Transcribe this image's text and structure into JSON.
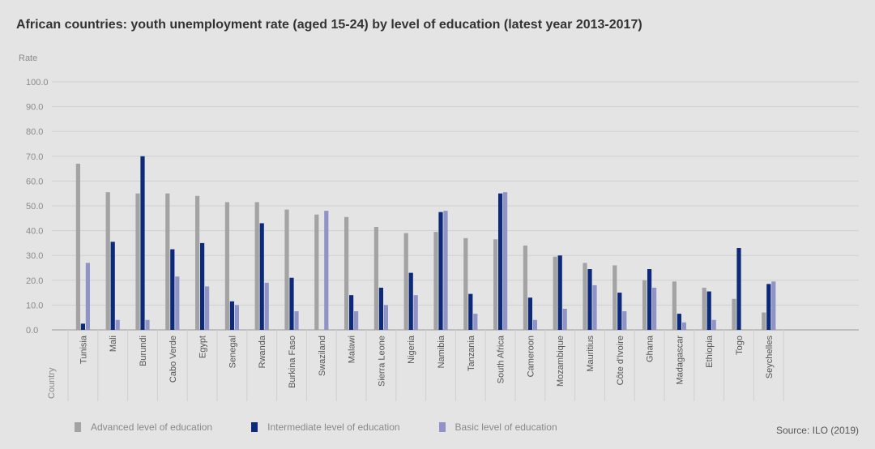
{
  "title": "African countries: youth unemployment rate (aged 15-24) by level of education (latest year 2013-2017)",
  "source": "Source: ILO (2019)",
  "colors": {
    "advanced": "#a3a3a3",
    "intermediate": "#0d2a7a",
    "basic": "#8f93c6",
    "grid": "#d0d0d0",
    "axis_text": "#8a8a8a"
  },
  "chart_data": {
    "type": "bar",
    "ylabel": "Rate",
    "xlabel": "Country",
    "ylim": [
      0,
      100
    ],
    "yticks": [
      "100.0",
      "90.0",
      "80.0",
      "70.0",
      "60.0",
      "50.0",
      "40.0",
      "30.0",
      "20.0",
      "10.0",
      "0.0"
    ],
    "grid": true,
    "legend_position": "bottom",
    "categories": [
      "Tunisia",
      "Mali",
      "Burundi",
      "Cabo Verde",
      "Egypt",
      "Senegal",
      "Rwanda",
      "Burkina Faso",
      "Swaziland",
      "Malawi",
      "Sierra Leone",
      "Nigeria",
      "Namibia",
      "Tanzania",
      "South Africa",
      "Cameroon",
      "Mozambique",
      "Mauritius",
      "Côte d'Ivoire",
      "Ghana",
      "Madagascar",
      "Ethiopia",
      "Togo",
      "Seychelles"
    ],
    "series": [
      {
        "name": "Advanced level of education",
        "values": [
          67.0,
          55.5,
          55.0,
          55.0,
          54.0,
          51.5,
          51.5,
          48.5,
          46.5,
          45.5,
          41.5,
          39.0,
          39.5,
          37.0,
          36.5,
          34.0,
          29.5,
          27.0,
          26.0,
          20.0,
          19.5,
          17.0,
          12.5,
          7.0
        ]
      },
      {
        "name": "Intermediate level of education",
        "values": [
          2.5,
          35.5,
          70.0,
          32.5,
          35.0,
          11.5,
          43.0,
          21.0,
          0,
          14.0,
          17.0,
          23.0,
          47.5,
          14.5,
          55.0,
          13.0,
          30.0,
          24.5,
          15.0,
          24.5,
          6.5,
          15.5,
          33.0,
          18.5
        ]
      },
      {
        "name": "Basic level of education",
        "values": [
          27.0,
          4.0,
          4.0,
          21.5,
          17.5,
          10.0,
          19.0,
          7.5,
          48.0,
          7.5,
          10.0,
          14.0,
          48.0,
          6.5,
          55.5,
          4.0,
          8.5,
          18.0,
          7.5,
          17.0,
          3.0,
          4.0,
          0,
          19.5
        ]
      }
    ]
  }
}
